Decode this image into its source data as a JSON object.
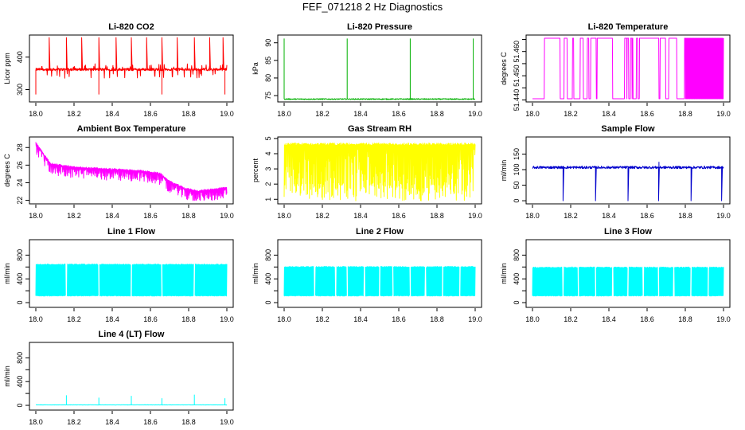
{
  "figure_title": "FEF_071218  2 Hz Diagnostics",
  "chart_data": [
    {
      "type": "line",
      "title": "Li-820 CO2",
      "ylabel": "Licor ppm",
      "color": "#ff0000",
      "xlim": [
        18.0,
        19.0
      ],
      "ylim": [
        262,
        468
      ],
      "xticks": [
        18.0,
        18.2,
        18.4,
        18.6,
        18.8,
        19.0
      ],
      "xtick_labels": [
        "18.0",
        "18.2",
        "18.4",
        "18.6",
        "18.8",
        "19.0"
      ],
      "yticks": [
        300,
        400
      ],
      "ytick_labels": [
        "300",
        "400"
      ],
      "series": [
        {
          "name": "CO2",
          "baseline": 362,
          "noise": 4,
          "band_low": 350,
          "band_high": 368,
          "spike_x": [
            18.07,
            18.16,
            18.24,
            18.33,
            18.42,
            18.5,
            18.58,
            18.66,
            18.74,
            18.83,
            18.91,
            18.98
          ],
          "spike_y": 460,
          "dip_x": [
            18.0,
            18.33,
            18.66,
            18.99
          ],
          "dip_y": 285
        }
      ]
    },
    {
      "type": "line",
      "title": "Li-820 Pressure",
      "ylabel": "kPa",
      "color": "#00b000",
      "xlim": [
        18.0,
        19.0
      ],
      "ylim": [
        73.2,
        92.2
      ],
      "xticks": [
        18.0,
        18.2,
        18.4,
        18.6,
        18.8,
        19.0
      ],
      "xtick_labels": [
        "18.0",
        "18.2",
        "18.4",
        "18.6",
        "18.8",
        "19.0"
      ],
      "yticks": [
        75,
        80,
        85,
        90
      ],
      "ytick_labels": [
        "75",
        "80",
        "85",
        "90"
      ],
      "series": [
        {
          "name": "Pressure",
          "baseline": 74.0,
          "noise": 0.15,
          "spike_x": [
            18.0,
            18.33,
            18.66,
            18.99
          ],
          "spike_y": 91.2
        }
      ]
    },
    {
      "type": "line",
      "title": "Li-820 Temperature",
      "ylabel": "degrees C",
      "color": "#ff00ff",
      "xlim": [
        18.0,
        19.0
      ],
      "ylim": [
        51.4392,
        51.4668
      ],
      "xticks": [
        18.0,
        18.2,
        18.4,
        18.6,
        18.8,
        19.0
      ],
      "xtick_labels": [
        "18.0",
        "18.2",
        "18.4",
        "18.6",
        "18.8",
        "19.0"
      ],
      "yticks": [
        51.44,
        51.445,
        51.45,
        51.455,
        51.46,
        51.465
      ],
      "ytick_labels": [
        "51.440",
        "",
        "51.450",
        "",
        "51.460",
        ""
      ],
      "series": [
        {
          "name": "Temperature",
          "low": 51.4405,
          "high": 51.4655,
          "dense_from": 18.8
        }
      ]
    },
    {
      "type": "line",
      "title": "Ambient Box Temperature",
      "ylabel": "degrees C",
      "color": "#ff00ff",
      "xlim": [
        18.0,
        19.0
      ],
      "ylim": [
        21.6,
        29.2
      ],
      "xticks": [
        18.0,
        18.2,
        18.4,
        18.6,
        18.8,
        19.0
      ],
      "xtick_labels": [
        "18.0",
        "18.2",
        "18.4",
        "18.6",
        "18.8",
        "19.0"
      ],
      "yticks": [
        22,
        24,
        26,
        28
      ],
      "ytick_labels": [
        "22",
        "24",
        "26",
        "28"
      ],
      "series": [
        {
          "name": "Box temperature",
          "trend_x": [
            18.0,
            18.04,
            18.08,
            18.2,
            18.55,
            18.65,
            18.7,
            18.78,
            18.85,
            19.0
          ],
          "trend_y": [
            28.5,
            27.2,
            26.1,
            25.7,
            25.3,
            25.0,
            24.1,
            23.3,
            23.0,
            23.4
          ],
          "band": 1.2
        }
      ]
    },
    {
      "type": "line",
      "title": "Gas Stream RH",
      "ylabel": "percent",
      "color": "#ffff00",
      "xlim": [
        18.0,
        19.0
      ],
      "ylim": [
        0.7,
        5.1
      ],
      "xticks": [
        18.0,
        18.2,
        18.4,
        18.6,
        18.8,
        19.0
      ],
      "xtick_labels": [
        "18.0",
        "18.2",
        "18.4",
        "18.6",
        "18.8",
        "19.0"
      ],
      "yticks": [
        1,
        2,
        3,
        4,
        5
      ],
      "ytick_labels": [
        "1",
        "2",
        "3",
        "4",
        "5"
      ],
      "series": [
        {
          "name": "RH",
          "low": 0.9,
          "high": 4.7
        }
      ]
    },
    {
      "type": "line",
      "title": "Sample Flow",
      "ylabel": "ml/min",
      "color": "#0000cc",
      "xlim": [
        18.0,
        19.0
      ],
      "ylim": [
        -10,
        205
      ],
      "xticks": [
        18.0,
        18.2,
        18.4,
        18.6,
        18.8,
        19.0
      ],
      "xtick_labels": [
        "18.0",
        "18.2",
        "18.4",
        "18.6",
        "18.8",
        "19.0"
      ],
      "yticks": [
        0,
        50,
        100,
        150
      ],
      "ytick_labels": [
        "0",
        "50",
        "100",
        "150"
      ],
      "series": [
        {
          "name": "Sample flow",
          "baseline": 107,
          "noise": 4,
          "dip_x": [
            18.16,
            18.33,
            18.5,
            18.66,
            18.83,
            18.99
          ],
          "dip_y": 0,
          "spike_x": [
            18.66
          ],
          "spike_y": 125
        }
      ]
    },
    {
      "type": "line",
      "title": "Line 1 Flow",
      "ylabel": "ml/min",
      "color": "#00ffff",
      "xlim": [
        18.0,
        19.0
      ],
      "ylim": [
        -80,
        1060
      ],
      "xticks": [
        18.0,
        18.2,
        18.4,
        18.6,
        18.8,
        19.0
      ],
      "xtick_labels": [
        "18.0",
        "18.2",
        "18.4",
        "18.6",
        "18.8",
        "19.0"
      ],
      "yticks": [
        0,
        200,
        400,
        600,
        800
      ],
      "ytick_labels": [
        "0",
        "",
        "400",
        "",
        "800"
      ],
      "series": [
        {
          "name": "Line 1",
          "low": 110,
          "high": 650,
          "gap_x": [
            18.16,
            18.33,
            18.5,
            18.66,
            18.83
          ]
        }
      ]
    },
    {
      "type": "line",
      "title": "Line 2 Flow",
      "ylabel": "ml/min",
      "color": "#00ffff",
      "xlim": [
        18.0,
        19.0
      ],
      "ylim": [
        -80,
        1060
      ],
      "xticks": [
        18.0,
        18.2,
        18.4,
        18.6,
        18.8,
        19.0
      ],
      "xtick_labels": [
        "18.0",
        "18.2",
        "18.4",
        "18.6",
        "18.8",
        "19.0"
      ],
      "yticks": [
        0,
        200,
        400,
        600,
        800
      ],
      "ytick_labels": [
        "0",
        "",
        "400",
        "",
        "800"
      ],
      "series": [
        {
          "name": "Line 2",
          "low": 110,
          "high": 610,
          "gap_x": [
            18.16,
            18.27,
            18.33,
            18.42,
            18.5,
            18.57,
            18.66,
            18.74,
            18.83,
            18.92
          ]
        }
      ]
    },
    {
      "type": "line",
      "title": "Line 3 Flow",
      "ylabel": "ml/min",
      "color": "#00ffff",
      "xlim": [
        18.0,
        19.0
      ],
      "ylim": [
        -80,
        1060
      ],
      "xticks": [
        18.0,
        18.2,
        18.4,
        18.6,
        18.8,
        19.0
      ],
      "xtick_labels": [
        "18.0",
        "18.2",
        "18.4",
        "18.6",
        "18.8",
        "19.0"
      ],
      "yticks": [
        0,
        200,
        400,
        600,
        800
      ],
      "ytick_labels": [
        "0",
        "",
        "400",
        "",
        "800"
      ],
      "series": [
        {
          "name": "Line 3",
          "low": 110,
          "high": 600,
          "gap_x": [
            18.16,
            18.24,
            18.33,
            18.42,
            18.5,
            18.58,
            18.66,
            18.74,
            18.83,
            18.92
          ]
        }
      ]
    },
    {
      "type": "line",
      "title": "Line 4 (LT) Flow",
      "ylabel": "ml/min",
      "color": "#00ffff",
      "xlim": [
        18.0,
        19.0
      ],
      "ylim": [
        -80,
        1060
      ],
      "xticks": [
        18.0,
        18.2,
        18.4,
        18.6,
        18.8,
        19.0
      ],
      "xtick_labels": [
        "18.0",
        "18.2",
        "18.4",
        "18.6",
        "18.8",
        "19.0"
      ],
      "yticks": [
        0,
        200,
        400,
        600,
        800
      ],
      "ytick_labels": [
        "0",
        "",
        "400",
        "",
        "800"
      ],
      "series": [
        {
          "name": "Line 4 (LT)",
          "baseline": 8,
          "noise": 2,
          "spike_x": [
            18.16,
            18.33,
            18.5,
            18.66,
            18.83,
            18.99
          ],
          "spike_y": [
            170,
            130,
            160,
            120,
            180,
            120
          ]
        }
      ]
    }
  ]
}
